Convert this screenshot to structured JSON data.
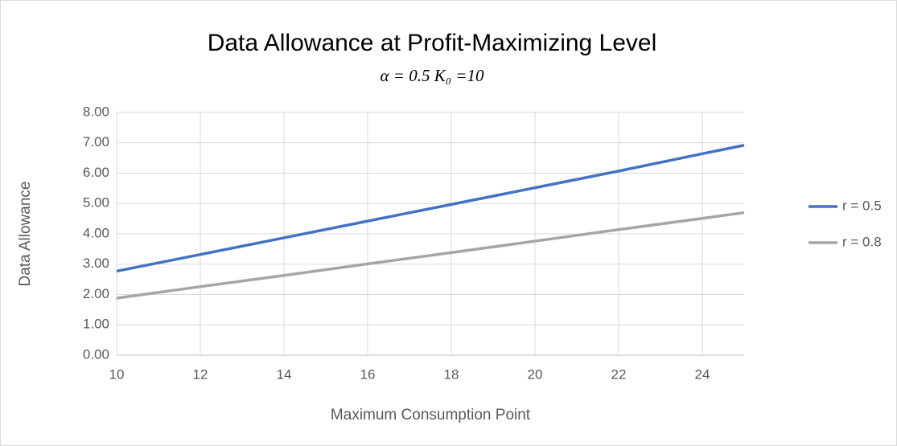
{
  "chart_data": {
    "type": "line",
    "title": "Data Allowance at Profit-Maximizing Level",
    "subtitle": "α = 0.5 K₀ =10",
    "x_label": "Maximum Consumption Point",
    "y_label": "Data Allowance",
    "x": [
      10,
      12,
      14,
      16,
      18,
      20,
      22,
      24,
      25
    ],
    "series": [
      {
        "name": "r = 0.5",
        "color": "#4472c4",
        "values": [
          2.77,
          3.32,
          3.87,
          4.42,
          4.97,
          5.52,
          6.07,
          6.64,
          6.92
        ]
      },
      {
        "name": "r = 0.8",
        "color": "#a5a5a5",
        "values": [
          1.88,
          2.26,
          2.63,
          3.01,
          3.38,
          3.76,
          4.14,
          4.51,
          4.7
        ]
      }
    ],
    "xlim": [
      10,
      25
    ],
    "xticks": [
      10,
      12,
      14,
      16,
      18,
      20,
      22,
      24
    ],
    "ylim": [
      0,
      8
    ],
    "yticks": [
      {
        "value": 0,
        "label": "0.00"
      },
      {
        "value": 1,
        "label": "1.00"
      },
      {
        "value": 2,
        "label": "2.00"
      },
      {
        "value": 3,
        "label": "3.00"
      },
      {
        "value": 4,
        "label": "4.00"
      },
      {
        "value": 5,
        "label": "5.00"
      },
      {
        "value": 6,
        "label": "6.00"
      },
      {
        "value": 7,
        "label": "7.00"
      },
      {
        "value": 8,
        "label": "8.00"
      }
    ],
    "grid": true,
    "legend": "right"
  }
}
